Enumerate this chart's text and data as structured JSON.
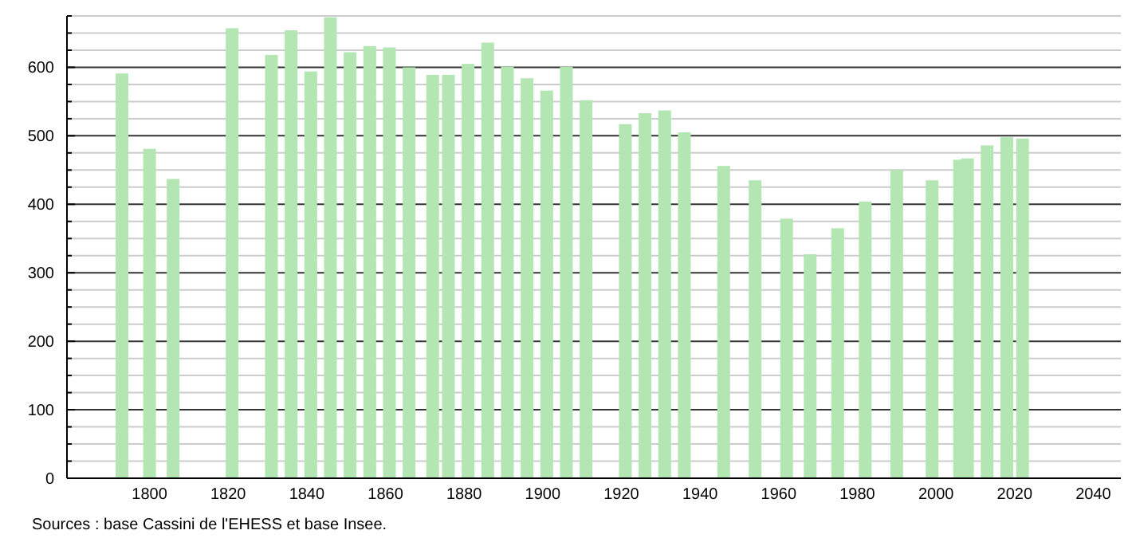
{
  "chart_data": {
    "type": "bar",
    "x": [
      1793,
      1800,
      1806,
      1821,
      1831,
      1836,
      1841,
      1846,
      1851,
      1856,
      1861,
      1866,
      1872,
      1876,
      1881,
      1886,
      1891,
      1896,
      1901,
      1906,
      1911,
      1921,
      1926,
      1931,
      1936,
      1946,
      1954,
      1962,
      1968,
      1975,
      1982,
      1990,
      1999,
      2006,
      2008,
      2013,
      2018,
      2022
    ],
    "values": [
      591,
      481,
      437,
      657,
      618,
      654,
      594,
      673,
      622,
      631,
      629,
      600,
      589,
      589,
      605,
      636,
      601,
      584,
      566,
      601,
      552,
      517,
      533,
      537,
      505,
      456,
      435,
      379,
      327,
      365,
      404,
      450,
      435,
      465,
      467,
      486,
      498,
      496
    ],
    "color": "#b3e6b3",
    "xlim": [
      1779,
      2047
    ],
    "xticks": [
      1800,
      1820,
      1840,
      1860,
      1880,
      1900,
      1920,
      1940,
      1960,
      1980,
      2000,
      2020,
      2040
    ],
    "ylim": [
      0,
      675
    ],
    "yticks": [
      0,
      {
        "value": 25,
        "label": null
      },
      {
        "value": 50,
        "label": null
      },
      {
        "value": 75,
        "label": null
      },
      100,
      {
        "value": 125,
        "label": null
      },
      {
        "value": 150,
        "label": null
      },
      {
        "value": 175,
        "label": null
      },
      200,
      {
        "value": 225,
        "label": null
      },
      {
        "value": 250,
        "label": null
      },
      {
        "value": 275,
        "label": null
      },
      300,
      {
        "value": 325,
        "label": null
      },
      {
        "value": 350,
        "label": null
      },
      {
        "value": 375,
        "label": null
      },
      400,
      {
        "value": 425,
        "label": null
      },
      {
        "value": 450,
        "label": null
      },
      {
        "value": 475,
        "label": null
      },
      500,
      {
        "value": 525,
        "label": null
      },
      {
        "value": 550,
        "label": null
      },
      {
        "value": 575,
        "label": null
      },
      600,
      {
        "value": 625,
        "label": null
      },
      {
        "value": 650,
        "label": null
      },
      {
        "value": 675,
        "label": null
      }
    ],
    "grid": true,
    "annotations": [
      "Sources : base Cassini de l'EHESS et base Insee."
    ]
  }
}
